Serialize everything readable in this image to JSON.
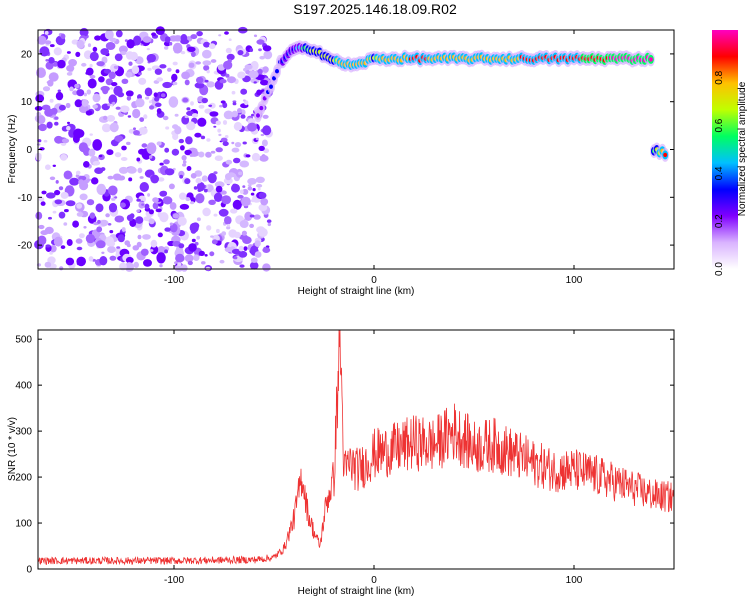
{
  "title": "S197.2025.146.18.09.R02",
  "chart_data": [
    {
      "type": "heatmap",
      "xlabel": "Height of straight line (km)",
      "ylabel": "Frequency (Hz)",
      "xlim": [
        -168,
        150
      ],
      "ylim": [
        -25,
        25
      ],
      "xticks": [
        -100,
        0,
        100
      ],
      "yticks": [
        -20,
        -10,
        0,
        10,
        20
      ],
      "colorbar": {
        "label": "Normalized spectral amplitude",
        "range": [
          0,
          1
        ],
        "ticks": [
          "0.0",
          "0.2",
          "0.4",
          "0.6",
          "0.8"
        ],
        "colormap": [
          "#ffffff",
          "#d9b3ff",
          "#8000ff",
          "#0000ff",
          "#00c0ff",
          "#00ff60",
          "#c0ff00",
          "#ffc000",
          "#ff0000",
          "#ff00c0"
        ]
      },
      "noise_region": {
        "x": [
          -168,
          -52
        ],
        "freq": [
          -25,
          25
        ],
        "amplitude": [
          0.05,
          0.25
        ]
      },
      "doppler_trace": [
        {
          "x": -58,
          "freq": 7,
          "amp": 0.2
        },
        {
          "x": -53,
          "freq": 12,
          "amp": 0.3
        },
        {
          "x": -47,
          "freq": 18,
          "amp": 0.3
        },
        {
          "x": -40,
          "freq": 21,
          "amp": 0.35
        },
        {
          "x": -30,
          "freq": 21,
          "amp": 0.7
        },
        {
          "x": -20,
          "freq": 18.5,
          "amp": 0.7
        },
        {
          "x": -10,
          "freq": 17.5,
          "amp": 0.8
        },
        {
          "x": 0,
          "freq": 19,
          "amp": 0.7
        },
        {
          "x": 20,
          "freq": 19,
          "amp": 0.85
        },
        {
          "x": 40,
          "freq": 19,
          "amp": 0.8
        },
        {
          "x": 60,
          "freq": 19,
          "amp": 0.8
        },
        {
          "x": 80,
          "freq": 19,
          "amp": 0.85
        },
        {
          "x": 100,
          "freq": 19,
          "amp": 0.9
        },
        {
          "x": 120,
          "freq": 19,
          "amp": 0.95
        },
        {
          "x": 140,
          "freq": 19,
          "amp": 0.95
        }
      ],
      "secondary_trace": [
        {
          "x": 140,
          "freq": 0,
          "amp": 0.6
        },
        {
          "x": 147,
          "freq": -1,
          "amp": 0.9
        }
      ]
    },
    {
      "type": "line",
      "xlabel": "Height of straight line (km)",
      "ylabel": "SNR (10 * v/v)",
      "xlim": [
        -168,
        150
      ],
      "ylim": [
        0,
        520
      ],
      "xticks": [
        -100,
        0,
        100
      ],
      "yticks": [
        0,
        100,
        200,
        300,
        400,
        500
      ],
      "color": "#ee3333",
      "series": [
        {
          "x": [
            -168,
            -140,
            -120,
            -100,
            -80,
            -60,
            -50,
            -45,
            -40,
            -36,
            -33,
            -30,
            -27,
            -24,
            -20,
            -17,
            -15,
            -12,
            -8,
            -4,
            0,
            10,
            20,
            30,
            40,
            50,
            60,
            70,
            80,
            90,
            100,
            110,
            120,
            130,
            140,
            150
          ],
          "y": [
            18,
            18,
            18,
            18,
            19,
            20,
            25,
            45,
            110,
            205,
            120,
            80,
            50,
            140,
            200,
            520,
            210,
            230,
            215,
            230,
            250,
            260,
            275,
            270,
            300,
            265,
            270,
            250,
            230,
            215,
            215,
            205,
            190,
            175,
            160,
            155
          ]
        }
      ]
    }
  ]
}
